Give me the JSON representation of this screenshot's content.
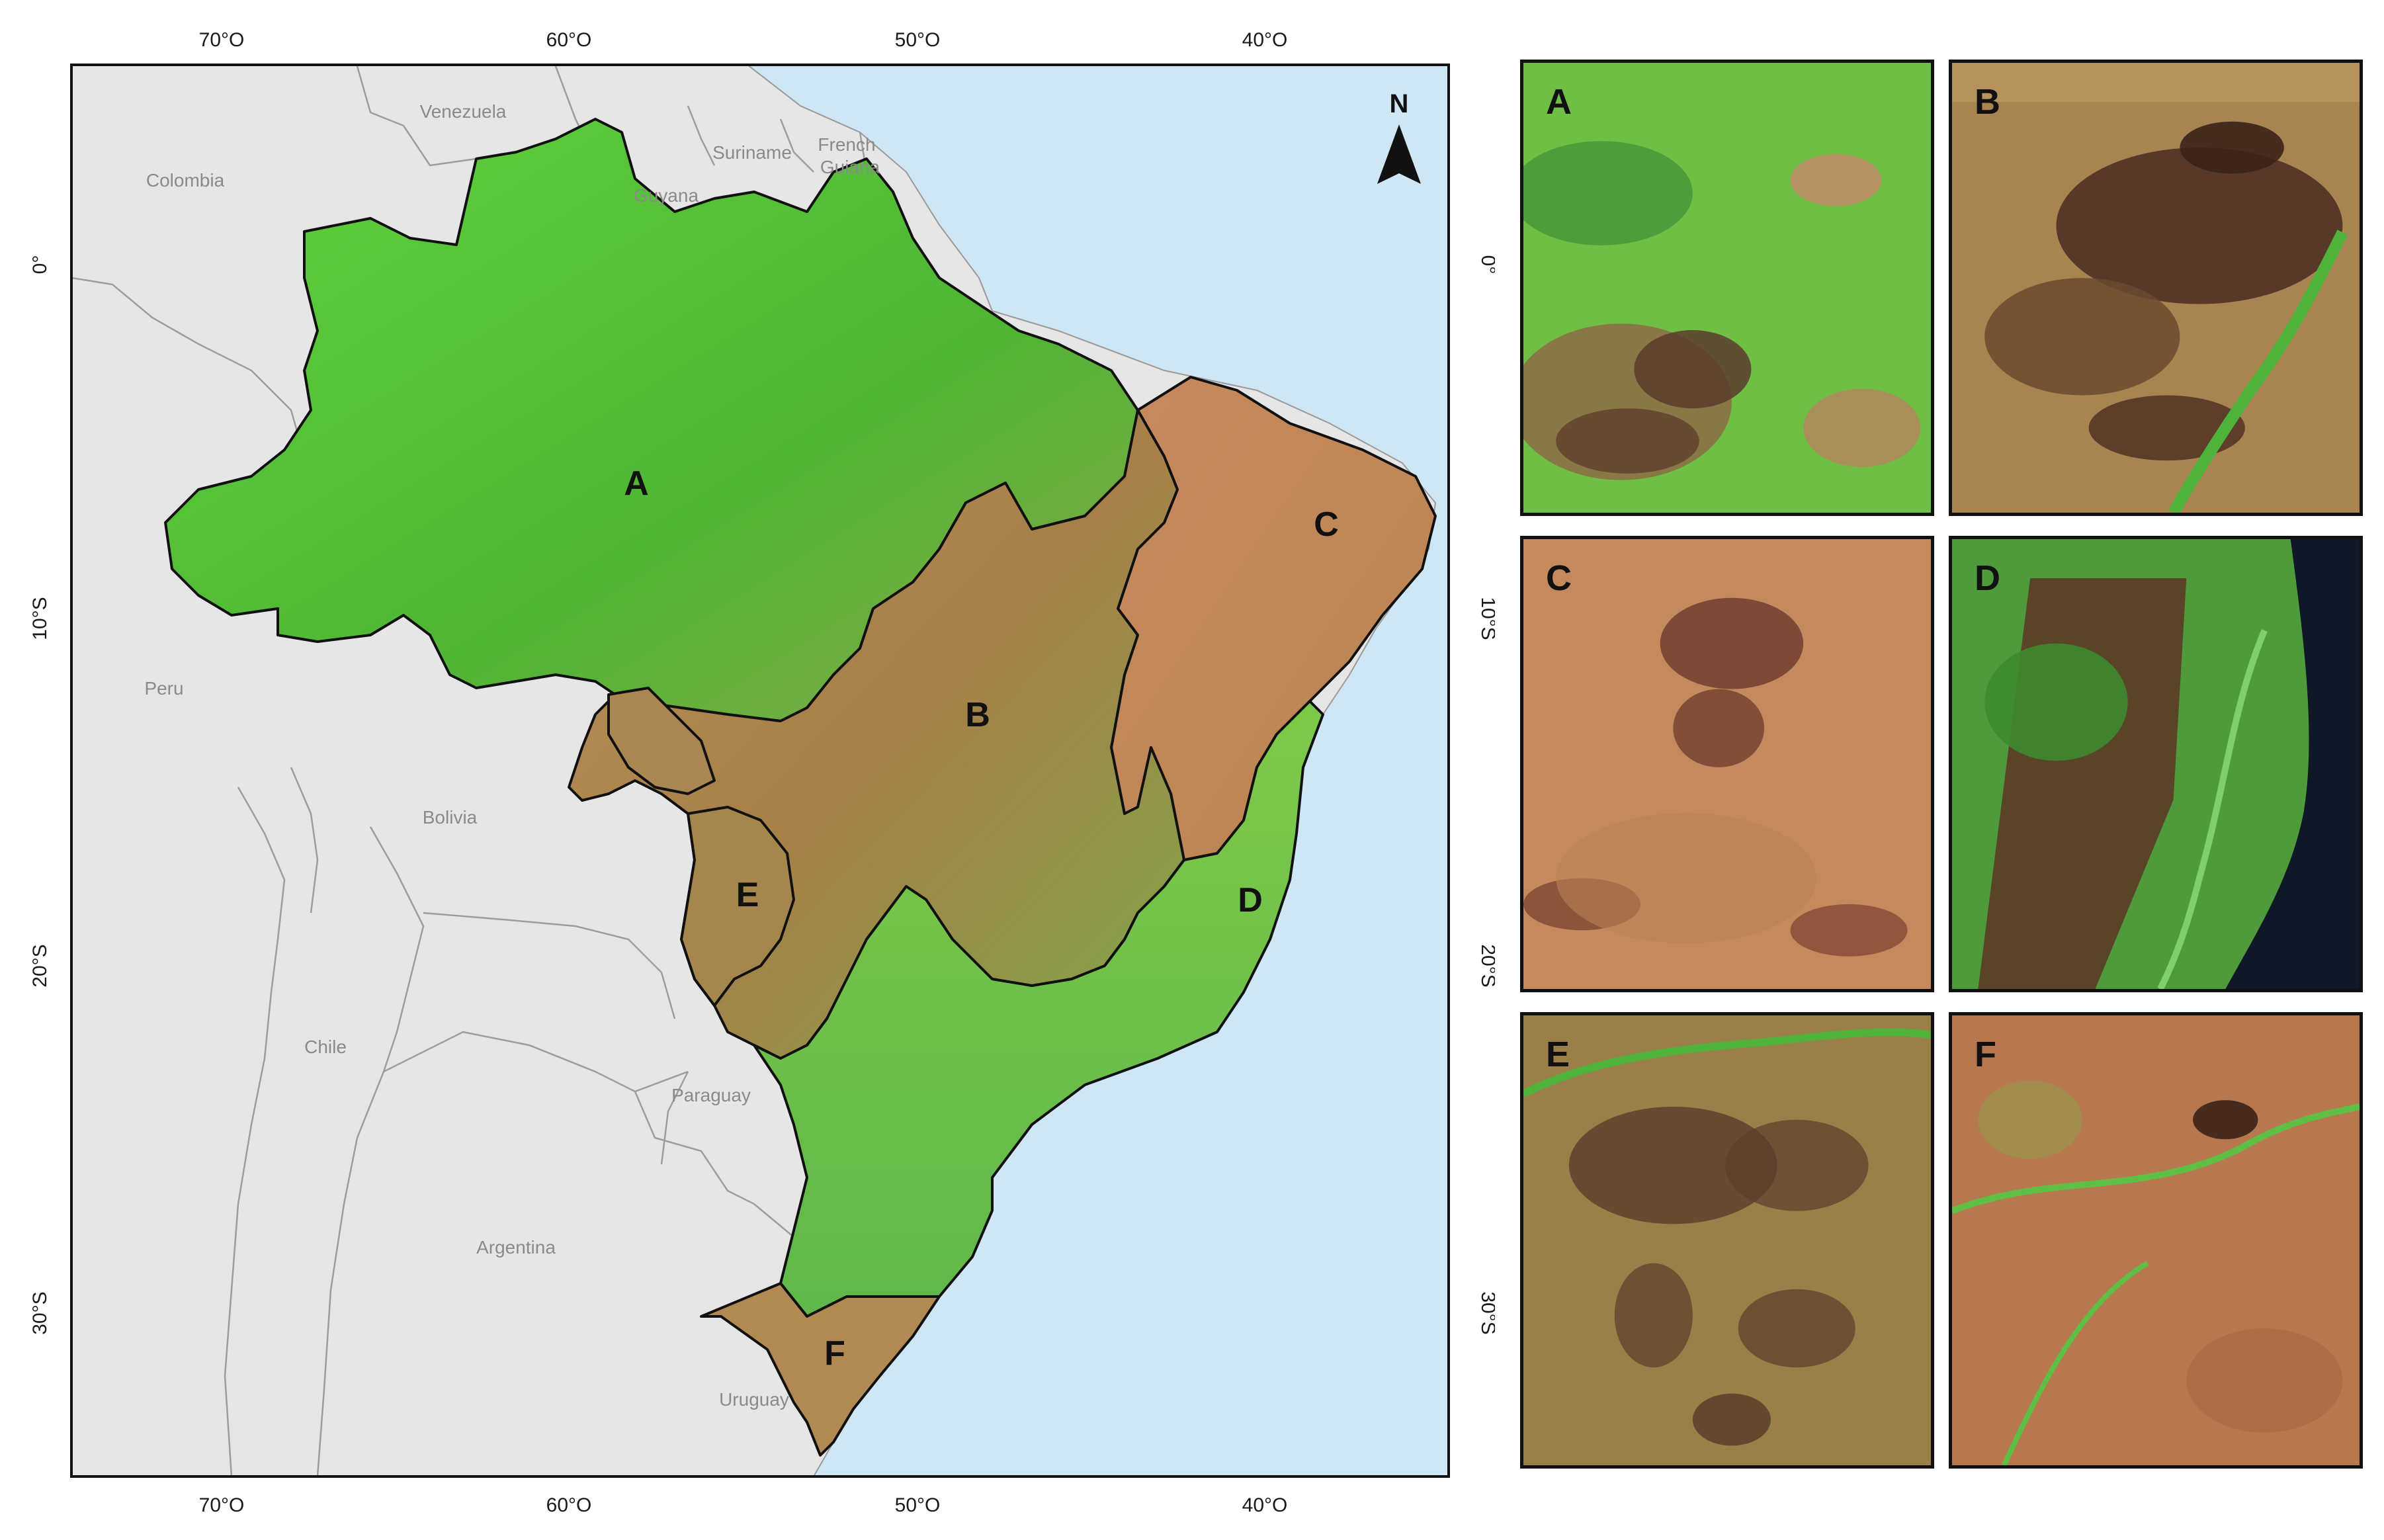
{
  "map": {
    "north_arrow": "N",
    "lon_ticks": [
      "70°O",
      "60°O",
      "50°O",
      "40°O"
    ],
    "lat_ticks": [
      "0°",
      "10°S",
      "20°S",
      "30°S"
    ],
    "countries": [
      "Venezuela",
      "Colombia",
      "Suriname",
      "French\nGuiana",
      "Guyana",
      "Peru",
      "Bolivia",
      "Chile",
      "Paraguay",
      "Argentina",
      "Uruguay"
    ],
    "biomes": [
      "A",
      "B",
      "C",
      "D",
      "E",
      "F"
    ],
    "colors": {
      "ocean": "#cfe6f4",
      "land": "#e6e6e6",
      "forest": "#58c83a",
      "cerrado": "#b58a4c",
      "border": "#111111"
    }
  },
  "panels": [
    {
      "label": "A",
      "base": "#6fbf45",
      "accent": "#5b3b2b"
    },
    {
      "label": "B",
      "base": "#9a7a45",
      "accent": "#4a2c22"
    },
    {
      "label": "C",
      "base": "#c48a5e",
      "accent": "#6b3a2e"
    },
    {
      "label": "D",
      "base": "#4f9a3b",
      "accent": "#2f1b17"
    },
    {
      "label": "E",
      "base": "#9b7f48",
      "accent": "#5a3d2c"
    },
    {
      "label": "F",
      "base": "#b8784f",
      "accent": "#6a3a26"
    }
  ]
}
